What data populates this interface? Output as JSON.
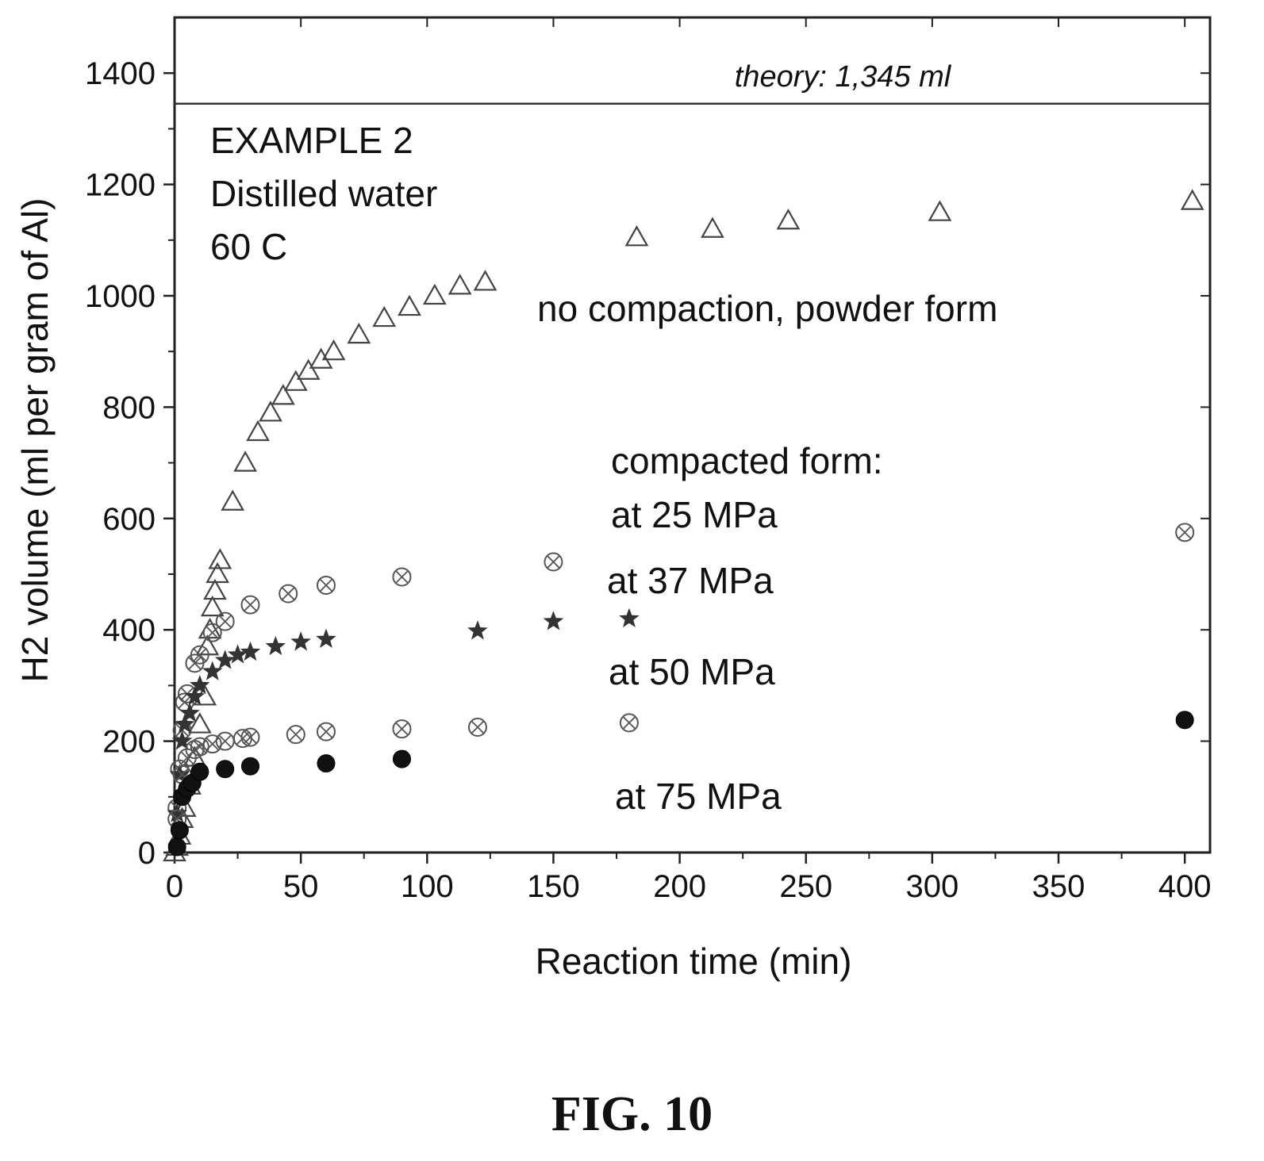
{
  "figure_label": "FIG. 10",
  "chart_data": {
    "type": "scatter",
    "xlabel": "Reaction time (min)",
    "ylabel": "H2 volume (ml per gram of Al)",
    "xlim": [
      0,
      410
    ],
    "ylim": [
      0,
      1500
    ],
    "x_ticks": [
      0,
      50,
      100,
      150,
      200,
      250,
      300,
      350,
      400
    ],
    "y_ticks": [
      0,
      200,
      400,
      600,
      800,
      1000,
      1200,
      1400
    ],
    "grid": false,
    "theory_line": {
      "y": 1345,
      "label": "theory: 1,345 ml"
    },
    "annotations": [
      {
        "id": "ex",
        "text": "EXAMPLE 2"
      },
      {
        "id": "water",
        "text": "Distilled water"
      },
      {
        "id": "temp",
        "text": "60 C"
      },
      {
        "id": "powder",
        "text": "no compaction, powder form"
      },
      {
        "id": "compacted",
        "text": "compacted form:"
      },
      {
        "id": "p25",
        "text": "at 25 MPa"
      },
      {
        "id": "p37",
        "text": "at 37 MPa"
      },
      {
        "id": "p50",
        "text": "at 50 MPa"
      },
      {
        "id": "p75",
        "text": "at 75 MPa"
      }
    ],
    "series": [
      {
        "marker": "triangle",
        "color": "#444444",
        "points": [
          [
            0,
            0
          ],
          [
            1,
            10
          ],
          [
            2,
            30
          ],
          [
            3,
            60
          ],
          [
            4,
            80
          ],
          [
            6,
            120
          ],
          [
            8,
            170
          ],
          [
            10,
            230
          ],
          [
            12,
            280
          ],
          [
            13,
            370
          ],
          [
            14,
            400
          ],
          [
            15,
            440
          ],
          [
            16,
            470
          ],
          [
            17,
            500
          ],
          [
            18,
            525
          ],
          [
            23,
            630
          ],
          [
            28,
            700
          ],
          [
            33,
            755
          ],
          [
            38,
            790
          ],
          [
            43,
            820
          ],
          [
            48,
            845
          ],
          [
            53,
            865
          ],
          [
            58,
            885
          ],
          [
            63,
            900
          ],
          [
            73,
            930
          ],
          [
            83,
            960
          ],
          [
            93,
            980
          ],
          [
            103,
            1000
          ],
          [
            113,
            1018
          ],
          [
            123,
            1025
          ],
          [
            183,
            1105
          ],
          [
            213,
            1120
          ],
          [
            243,
            1135
          ],
          [
            303,
            1150
          ],
          [
            403,
            1170
          ]
        ]
      },
      {
        "marker": "circle-x",
        "color": "#555555",
        "points": [
          [
            1,
            80
          ],
          [
            2,
            150
          ],
          [
            3,
            220
          ],
          [
            4,
            270
          ],
          [
            5,
            285
          ],
          [
            8,
            340
          ],
          [
            10,
            355
          ],
          [
            15,
            395
          ],
          [
            20,
            415
          ],
          [
            30,
            445
          ],
          [
            45,
            465
          ],
          [
            60,
            480
          ],
          [
            90,
            495
          ],
          [
            150,
            522
          ],
          [
            400,
            575
          ]
        ]
      },
      {
        "marker": "star",
        "color": "#333333",
        "points": [
          [
            1,
            70
          ],
          [
            2,
            140
          ],
          [
            3,
            200
          ],
          [
            4,
            230
          ],
          [
            6,
            250
          ],
          [
            8,
            280
          ],
          [
            10,
            300
          ],
          [
            15,
            325
          ],
          [
            20,
            345
          ],
          [
            25,
            355
          ],
          [
            30,
            360
          ],
          [
            40,
            370
          ],
          [
            50,
            378
          ],
          [
            60,
            383
          ],
          [
            120,
            398
          ],
          [
            150,
            415
          ],
          [
            180,
            420
          ]
        ]
      },
      {
        "marker": "circle-x",
        "color": "#555555",
        "points": [
          [
            1,
            60
          ],
          [
            3,
            140
          ],
          [
            5,
            170
          ],
          [
            8,
            185
          ],
          [
            10,
            190
          ],
          [
            15,
            195
          ],
          [
            20,
            200
          ],
          [
            27,
            205
          ],
          [
            30,
            207
          ],
          [
            48,
            212
          ],
          [
            60,
            217
          ],
          [
            90,
            222
          ],
          [
            120,
            225
          ],
          [
            180,
            233
          ]
        ]
      },
      {
        "marker": "filled-circle",
        "color": "#111111",
        "points": [
          [
            1,
            10
          ],
          [
            2,
            40
          ],
          [
            3,
            100
          ],
          [
            5,
            115
          ],
          [
            7,
            125
          ],
          [
            10,
            145
          ],
          [
            20,
            150
          ],
          [
            30,
            155
          ],
          [
            60,
            160
          ],
          [
            90,
            168
          ],
          [
            400,
            238
          ]
        ]
      }
    ]
  }
}
